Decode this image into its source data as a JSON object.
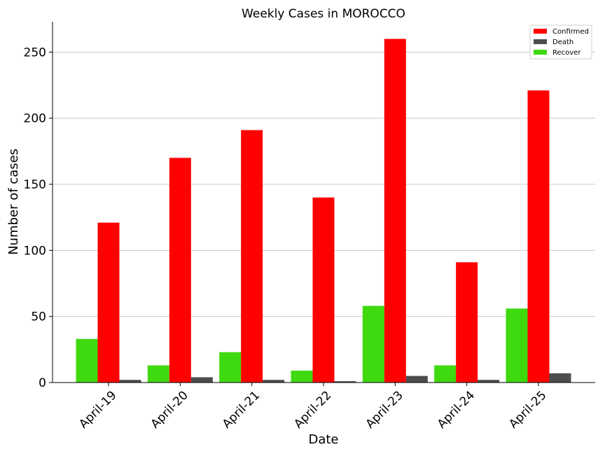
{
  "chart_data": {
    "type": "bar",
    "title": "Weekly Cases in MOROCCO",
    "xlabel": "Date",
    "ylabel": "Number of cases",
    "categories": [
      "April-19",
      "April-20",
      "April-21",
      "April-22",
      "April-23",
      "April-24",
      "April-25"
    ],
    "series": [
      {
        "name": "Recover",
        "color": "#3fd910",
        "values": [
          33,
          13,
          23,
          9,
          58,
          13,
          56
        ]
      },
      {
        "name": "Confirmed",
        "color": "#ff0000",
        "values": [
          121,
          170,
          191,
          140,
          260,
          91,
          221
        ]
      },
      {
        "name": "Death",
        "color": "#4d4d4d",
        "values": [
          2,
          4,
          2,
          1,
          5,
          2,
          7
        ]
      }
    ],
    "legend_order": [
      "Confirmed",
      "Death",
      "Recover"
    ],
    "ylim": [
      0,
      273
    ],
    "yticks": [
      0,
      50,
      100,
      150,
      200,
      250
    ],
    "grid": "y",
    "legend_position": "top-right"
  }
}
